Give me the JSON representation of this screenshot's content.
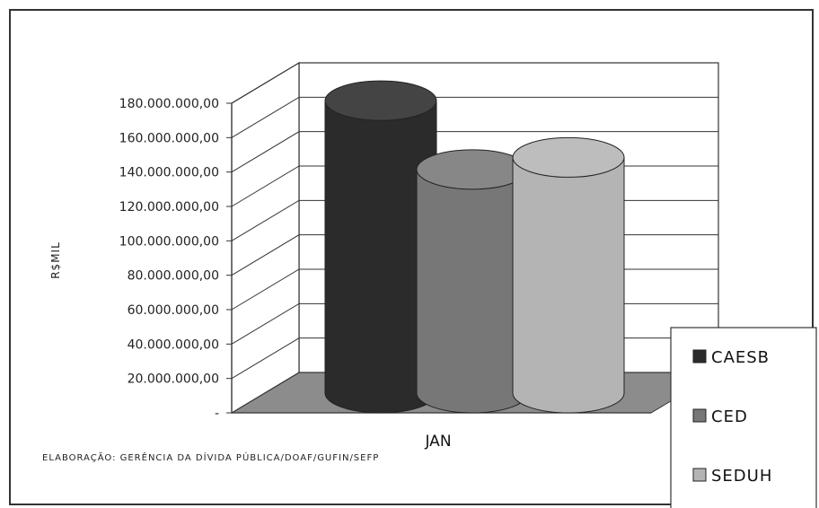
{
  "chart_data": {
    "type": "bar",
    "style": "3d-cylinder",
    "title": "",
    "xlabel": "",
    "ylabel": "R$MIL",
    "categories": [
      "JAN"
    ],
    "ylim": [
      0,
      180000000
    ],
    "yticks": [
      "-",
      "20.000.000,00",
      "40.000.000,00",
      "60.000.000,00",
      "80.000.000,00",
      "100.000.000,00",
      "120.000.000,00",
      "140.000.000,00",
      "160.000.000,00",
      "180.000.000,00"
    ],
    "grid": true,
    "legend_position": "bottom-right",
    "series": [
      {
        "name": "CAESB",
        "values": [
          170000000
        ],
        "color": "#2b2b2b"
      },
      {
        "name": "CED",
        "values": [
          130000000
        ],
        "color": "#777777"
      },
      {
        "name": "SEDUH",
        "values": [
          137000000
        ],
        "color": "#b4b4b4"
      }
    ],
    "annotation": "ELABORAÇÃO: GERÊNCIA DA DÍVIDA PÚBLICA/DOAF/GUFIN/SEFP"
  }
}
